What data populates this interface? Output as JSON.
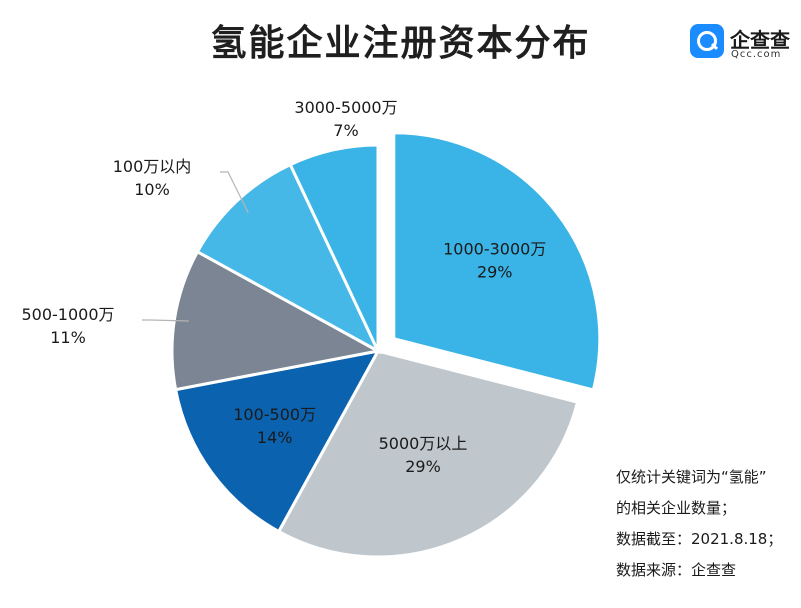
{
  "title": "氢能企业注册资本分布",
  "logo": {
    "icon": "magnifier-logo-icon",
    "name": "企查查",
    "url": "Qcc.com",
    "accent": "#1a8cff"
  },
  "chart_data": {
    "type": "pie",
    "title": "氢能企业注册资本分布",
    "slices": [
      {
        "label": "1000-3000万",
        "value": 29,
        "display": "29%",
        "color": "#3ab4e6",
        "exploded": true
      },
      {
        "label": "5000万以上",
        "value": 29,
        "display": "29%",
        "color": "#bfc7cd",
        "exploded": false
      },
      {
        "label": "100-500万",
        "value": 14,
        "display": "14%",
        "color": "#0b63b0",
        "exploded": false
      },
      {
        "label": "500-1000万",
        "value": 11,
        "display": "11%",
        "color": "#7b8593",
        "exploded": false
      },
      {
        "label": "100万以内",
        "value": 10,
        "display": "10%",
        "color": "#46b8e8",
        "exploded": false
      },
      {
        "label": "3000-5000万",
        "value": 7,
        "display": "7%",
        "color": "#3ab4e6",
        "exploded": false
      }
    ]
  },
  "notes": [
    "仅统计关键词为“氢能”",
    "的相关企业数量；",
    "数据截至：2021.8.18；",
    "数据来源：企查查"
  ]
}
